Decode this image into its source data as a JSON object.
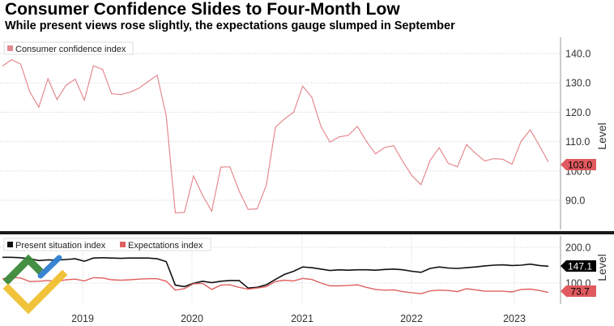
{
  "title": "Consumer Confidence Slides to Four-Month Low",
  "subtitle": "While present views rose slightly, the expectations gauge slumped in September",
  "chart_data": [
    {
      "type": "line",
      "panel": "top",
      "ylabel": "Level",
      "ylim": [
        78,
        145
      ],
      "yticks": [
        "140.0",
        "130.0",
        "120.0",
        "110.0",
        "100.0",
        "90.0"
      ],
      "grid": true,
      "legend_position": "top-left",
      "series": [
        {
          "name": "Consumer confidence index",
          "color": "#e48a8f",
          "values": [
            135.7,
            137.9,
            136.4,
            127.0,
            121.7,
            131.4,
            124.3,
            129.2,
            131.3,
            124.1,
            135.8,
            134.6,
            126.3,
            126.0,
            126.8,
            128.2,
            130.4,
            132.6,
            118.8,
            85.7,
            85.9,
            98.3,
            91.7,
            86.3,
            101.3,
            101.4,
            93.2,
            86.9,
            87.1,
            95.2,
            114.9,
            117.7,
            120.0,
            128.9,
            125.1,
            115.2,
            109.8,
            111.6,
            112.1,
            115.2,
            110.1,
            105.8,
            108.0,
            108.6,
            103.2,
            98.4,
            95.3,
            103.6,
            107.9,
            102.6,
            101.4,
            109.0,
            106.0,
            103.4,
            104.2,
            104.0,
            102.3,
            110.1,
            114.0,
            108.7,
            103.0
          ],
          "last_value_label": "103.0"
        }
      ]
    },
    {
      "type": "line",
      "panel": "bottom",
      "ylabel": "Level",
      "ylim": [
        45,
        225
      ],
      "yticks": [
        "200.0",
        "100.0"
      ],
      "xticks": [
        "2019",
        "2020",
        "2021",
        "2022",
        "2023"
      ],
      "grid": true,
      "legend_position": "top-left",
      "series": [
        {
          "name": "Present situation index",
          "color": "#111111",
          "values": [
            172,
            172,
            171,
            168,
            163,
            165,
            164,
            166,
            168,
            161,
            170,
            171,
            170,
            169,
            170,
            170,
            170,
            168,
            160,
            94,
            90,
            99,
            105,
            101,
            105,
            107,
            107,
            86,
            88,
            95,
            110,
            124,
            133,
            145,
            143,
            139,
            135,
            137,
            136,
            137,
            137,
            136,
            138,
            139,
            137,
            133,
            130,
            141,
            145,
            142,
            141,
            143,
            145,
            148,
            150,
            151,
            149,
            150,
            153,
            149,
            147.1
          ],
          "last_value_label": "147.1"
        },
        {
          "name": "Expectations index",
          "color": "#e06060",
          "values": [
            112,
            116,
            114,
            104,
            105,
            107,
            104,
            109,
            111,
            106,
            115,
            114,
            109,
            108,
            109,
            111,
            112,
            112,
            105,
            80,
            84,
            98,
            99,
            82,
            94,
            95,
            88,
            83,
            86,
            90,
            104,
            108,
            106,
            113,
            110,
            100,
            92,
            92,
            93,
            95,
            88,
            82,
            80,
            81,
            76,
            73,
            70,
            78,
            80,
            79,
            76,
            84,
            81,
            77,
            77,
            77,
            75,
            82,
            83,
            79,
            73.7
          ],
          "last_value_label": "73.7"
        }
      ]
    }
  ]
}
